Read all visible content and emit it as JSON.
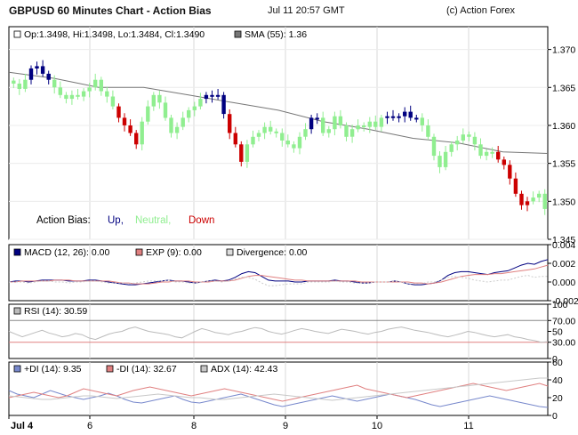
{
  "header": {
    "title": "GBPUSD 60 Minutes Chart - Action Bias",
    "timestamp": "Jul 11 20:57 GMT",
    "copyright": "(c) Action Forex"
  },
  "colors": {
    "up": "#000080",
    "neutral": "#90EE90",
    "down": "#CC0000",
    "sma": "#777777",
    "macd": "#000080",
    "exp": "#E08080",
    "divergence": "#CCCCCC",
    "rsi": "#BBBBBB",
    "plus_di": "#7788CC",
    "minus_di": "#E08080",
    "adx": "#C8C8C8"
  },
  "chart_data": [
    {
      "type": "candlestick",
      "legend": {
        "ohlc": "Op:1.3498, Hi:1.3498, Lo:1.3484, Cl:1.3490",
        "sma": "SMA (55): 1.36"
      },
      "bias_legend": {
        "label": "Action Bias:",
        "up": "Up,",
        "neutral": "Neutral,",
        "down": "Down"
      },
      "ylim": [
        1.345,
        1.373
      ],
      "yticks": [
        "1.370",
        "1.365",
        "1.360",
        "1.355",
        "1.350",
        "1.345"
      ],
      "xticks": [
        "Jul 4",
        "6",
        "8",
        "9",
        "10",
        "11"
      ],
      "close": [
        1.3655,
        1.3648,
        1.366,
        1.3675,
        1.3678,
        1.3668,
        1.366,
        1.365,
        1.364,
        1.3635,
        1.364,
        1.3638,
        1.3645,
        1.365,
        1.366,
        1.3645,
        1.3638,
        1.3625,
        1.361,
        1.36,
        1.359,
        1.3575,
        1.3605,
        1.3625,
        1.364,
        1.363,
        1.361,
        1.359,
        1.3598,
        1.361,
        1.362,
        1.3625,
        1.3635,
        1.364,
        1.3638,
        1.364,
        1.3615,
        1.359,
        1.3575,
        1.3552,
        1.3575,
        1.3585,
        1.359,
        1.3598,
        1.3592,
        1.359,
        1.358,
        1.3575,
        1.357,
        1.3585,
        1.3595,
        1.361,
        1.361,
        1.359,
        1.3595,
        1.3612,
        1.36,
        1.3585,
        1.3595,
        1.36,
        1.3598,
        1.3605,
        1.3598,
        1.361,
        1.3612,
        1.361,
        1.3612,
        1.3618,
        1.361,
        1.361,
        1.36,
        1.3585,
        1.356,
        1.3545,
        1.3565,
        1.3575,
        1.358,
        1.3588,
        1.3585,
        1.3575,
        1.356,
        1.3565,
        1.3565,
        1.3555,
        1.3548,
        1.353,
        1.351,
        1.3495,
        1.35,
        1.3505,
        1.351,
        1.349
      ],
      "bias": [
        "n",
        "n",
        "n",
        "u",
        "u",
        "u",
        "u",
        "n",
        "n",
        "n",
        "n",
        "n",
        "n",
        "n",
        "n",
        "n",
        "n",
        "n",
        "d",
        "d",
        "d",
        "d",
        "n",
        "n",
        "n",
        "n",
        "n",
        "n",
        "n",
        "n",
        "n",
        "n",
        "n",
        "u",
        "u",
        "u",
        "u",
        "d",
        "d",
        "d",
        "n",
        "n",
        "n",
        "n",
        "n",
        "n",
        "n",
        "n",
        "n",
        "n",
        "n",
        "u",
        "u",
        "n",
        "n",
        "n",
        "n",
        "n",
        "n",
        "n",
        "n",
        "n",
        "n",
        "n",
        "u",
        "u",
        "u",
        "u",
        "u",
        "u",
        "n",
        "n",
        "n",
        "n",
        "n",
        "n",
        "n",
        "n",
        "n",
        "n",
        "n",
        "n",
        "n",
        "d",
        "d",
        "d",
        "d",
        "d",
        "d",
        "n",
        "n",
        "n"
      ],
      "sma": [
        1.367,
        1.3662,
        1.365,
        1.365,
        1.364,
        1.363,
        1.362,
        1.3605,
        1.3595,
        1.3583,
        1.3577,
        1.3565,
        1.3563
      ]
    },
    {
      "type": "line",
      "legend": {
        "macd": "MACD (12, 26): 0.00",
        "exp": "EXP (9): 0.00",
        "divergence": "Divergence: 0.00"
      },
      "ylim": [
        -0.002,
        0.004
      ],
      "yticks": [
        "0.004",
        "0.002",
        "0.000",
        "-0.002"
      ],
      "series": [
        {
          "name": "MACD (12, 26)",
          "values": [
            0.0,
            0.0001,
            0.0001,
            0.0,
            0.0001,
            0.0002,
            0.0002,
            0.0002,
            0.0002,
            0.0001,
            0.0001,
            0.0001,
            0.0002,
            0.0002,
            0.0001,
            0.0,
            -0.0001,
            -0.0002,
            -0.0003,
            -0.0003,
            -0.0002,
            -0.0001,
            0.0,
            0.0001,
            0.0002,
            0.0001,
            0.0001,
            0.0,
            -0.0001,
            0.0,
            0.0001,
            0.0002,
            0.0001,
            0.0002,
            0.0005,
            0.0009,
            0.0011,
            0.001,
            0.0006,
            0.0002,
            0.0001,
            0.0001,
            0.0001,
            0.0,
            0.0,
            0.0001,
            0.0001,
            0.0001,
            0.0001,
            0.0002,
            0.0001,
            0.0001,
            0.0,
            -0.0001,
            -0.0001,
            0.0,
            0.0,
            0.0,
            0.0001,
            0.0,
            -0.0002,
            -0.0003,
            -0.0003,
            -0.0002,
            -0.0001,
            0.0002,
            0.0007,
            0.001,
            0.0011,
            0.0011,
            0.001,
            0.0009,
            0.0008,
            0.001,
            0.0011,
            0.0012,
            0.0015,
            0.0018,
            0.002,
            0.0019,
            0.0022,
            0.0024
          ]
        },
        {
          "name": "EXP (9)",
          "values": [
            0.0,
            0.0,
            0.0001,
            0.0001,
            0.0001,
            0.0001,
            0.0001,
            0.0002,
            0.0002,
            0.0002,
            0.0001,
            0.0001,
            0.0001,
            0.0001,
            0.0001,
            0.0001,
            0.0,
            -0.0001,
            -0.0001,
            -0.0002,
            -0.0002,
            -0.0002,
            -0.0001,
            0.0,
            0.0,
            0.0001,
            0.0001,
            0.0001,
            0.0,
            0.0,
            0.0,
            0.0001,
            0.0001,
            0.0001,
            0.0002,
            0.0004,
            0.0006,
            0.0007,
            0.0007,
            0.0006,
            0.0005,
            0.0004,
            0.0003,
            0.0002,
            0.0002,
            0.0001,
            0.0001,
            0.0001,
            0.0001,
            0.0001,
            0.0001,
            0.0001,
            0.0001,
            0.0,
            0.0,
            0.0,
            0.0,
            0.0,
            0.0,
            0.0,
            0.0,
            -0.0001,
            -0.0001,
            -0.0002,
            -0.0001,
            0.0,
            0.0002,
            0.0004,
            0.0006,
            0.0007,
            0.0008,
            0.0008,
            0.0008,
            0.0009,
            0.0009,
            0.001,
            0.0011,
            0.0012,
            0.0013,
            0.0014,
            0.0016,
            0.0018
          ]
        },
        {
          "name": "Divergence",
          "values": [
            0.0,
            0.0,
            0.0,
            -0.0001,
            0.0,
            0.0001,
            0.0001,
            0.0,
            0.0,
            -0.0001,
            0.0,
            0.0,
            0.0001,
            0.0001,
            0.0,
            -0.0001,
            -0.0001,
            -0.0001,
            -0.0002,
            -0.0001,
            0.0,
            0.0001,
            0.0001,
            0.0001,
            0.0002,
            0.0,
            0.0,
            -0.0001,
            -0.0001,
            0.0,
            0.0001,
            0.0001,
            0.0,
            0.0001,
            0.0003,
            0.0005,
            0.0005,
            0.0003,
            -0.0001,
            -0.0004,
            -0.0004,
            -0.0003,
            -0.0002,
            -0.0002,
            -0.0002,
            0.0,
            0.0,
            0.0,
            0.0,
            0.0001,
            0.0,
            0.0,
            -0.0001,
            -0.0001,
            -0.0001,
            0.0,
            0.0,
            0.0,
            0.0001,
            0.0,
            -0.0002,
            -0.0002,
            -0.0002,
            0.0,
            0.0,
            0.0002,
            0.0005,
            0.0006,
            0.0005,
            0.0004,
            0.0002,
            0.0001,
            0.0,
            0.0001,
            0.0002,
            0.0002,
            0.0004,
            0.0006,
            0.0007,
            0.0005,
            0.0006,
            0.0006
          ]
        }
      ]
    },
    {
      "type": "line",
      "legend": {
        "rsi": "RSI (14): 30.59"
      },
      "ylim": [
        0,
        100
      ],
      "yticks": [
        "100",
        "70.00",
        "50",
        "30.00",
        "0"
      ],
      "reference_lines": [
        70,
        30
      ],
      "series": [
        {
          "name": "RSI (14)",
          "values": [
            50,
            45,
            40,
            44,
            48,
            52,
            47,
            44,
            40,
            42,
            46,
            44,
            38,
            35,
            40,
            45,
            48,
            50,
            55,
            58,
            54,
            50,
            48,
            46,
            44,
            40,
            38,
            44,
            50,
            55,
            52,
            48,
            46,
            44,
            48,
            50,
            54,
            57,
            55,
            50,
            47,
            45,
            48,
            52,
            55,
            53,
            50,
            48,
            46,
            50,
            54,
            52,
            50,
            47,
            45,
            48,
            50,
            54,
            56,
            58,
            55,
            52,
            50,
            48,
            45,
            42,
            40,
            43,
            46,
            50,
            48,
            45,
            42,
            40,
            42,
            44,
            40,
            38,
            35,
            33,
            30,
            31
          ]
        }
      ]
    },
    {
      "type": "line",
      "legend": {
        "plus_di": "+DI (14): 9.35",
        "minus_di": "-DI (14): 32.67",
        "adx": "ADX (14): 42.43"
      },
      "ylim": [
        0,
        60
      ],
      "yticks": [
        "60",
        "40",
        "20",
        "0"
      ],
      "series": [
        {
          "name": "+DI (14)",
          "values": [
            28,
            24,
            22,
            20,
            24,
            28,
            25,
            22,
            20,
            18,
            20,
            22,
            25,
            22,
            18,
            15,
            14,
            16,
            18,
            20,
            22,
            18,
            15,
            14,
            16,
            18,
            20,
            22,
            24,
            21,
            18,
            15,
            12,
            10,
            12,
            14,
            16,
            18,
            20,
            22,
            20,
            18,
            16,
            18,
            20,
            22,
            24,
            22,
            20,
            18,
            15,
            12,
            10,
            12,
            14,
            16,
            18,
            20,
            22,
            20,
            18,
            16,
            14,
            12,
            10,
            9
          ]
        },
        {
          "name": "-DI (14)",
          "values": [
            20,
            22,
            24,
            26,
            24,
            22,
            20,
            22,
            26,
            30,
            28,
            26,
            24,
            22,
            25,
            28,
            30,
            32,
            30,
            28,
            26,
            24,
            22,
            24,
            26,
            28,
            30,
            28,
            26,
            24,
            22,
            20,
            18,
            16,
            18,
            20,
            22,
            24,
            26,
            28,
            30,
            32,
            34,
            30,
            28,
            26,
            24,
            22,
            20,
            22,
            24,
            26,
            28,
            30,
            32,
            34,
            36,
            34,
            32,
            30,
            28,
            30,
            32,
            34,
            36,
            33
          ]
        },
        {
          "name": "ADX (14)",
          "values": [
            22,
            21,
            20,
            19,
            18,
            18,
            19,
            20,
            21,
            22,
            22,
            21,
            20,
            19,
            20,
            21,
            22,
            23,
            24,
            23,
            22,
            21,
            20,
            20,
            19,
            18,
            18,
            19,
            20,
            21,
            22,
            23,
            24,
            23,
            22,
            21,
            20,
            19,
            18,
            17,
            18,
            19,
            20,
            21,
            22,
            23,
            24,
            25,
            26,
            27,
            28,
            29,
            30,
            31,
            32,
            33,
            34,
            35,
            36,
            37,
            38,
            39,
            40,
            41,
            42,
            42
          ]
        }
      ]
    }
  ]
}
